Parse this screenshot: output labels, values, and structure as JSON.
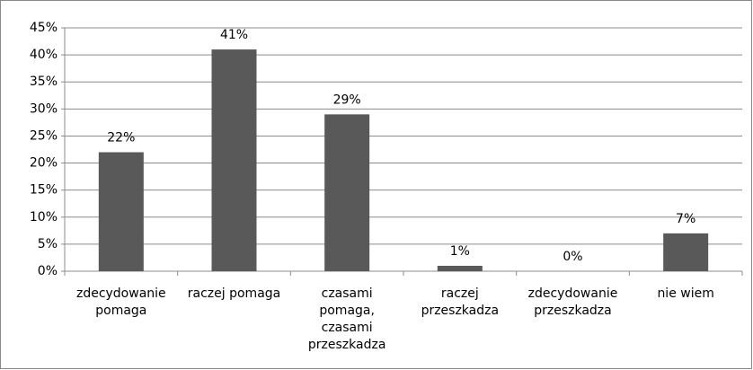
{
  "chart_data": {
    "type": "bar",
    "categories": [
      "zdecydowanie pomaga",
      "raczej pomaga",
      "czasami pomaga, czasami przeszkadza",
      "raczej przeszkadza",
      "zdecydowanie przeszkadza",
      "nie wiem"
    ],
    "values": [
      22,
      41,
      29,
      1,
      0,
      7
    ],
    "value_labels": [
      "22%",
      "41%",
      "29%",
      "1%",
      "0%",
      "7%"
    ],
    "color": "#595959",
    "ylim": [
      0,
      45
    ],
    "yticks": [
      {
        "value": 0,
        "label": "0%"
      },
      {
        "value": 5,
        "label": "5%"
      },
      {
        "value": 10,
        "label": "10%"
      },
      {
        "value": 15,
        "label": "15%"
      },
      {
        "value": 20,
        "label": "20%"
      },
      {
        "value": 25,
        "label": "25%"
      },
      {
        "value": 30,
        "label": "30%"
      },
      {
        "value": 35,
        "label": "35%"
      },
      {
        "value": 40,
        "label": "40%"
      },
      {
        "value": 45,
        "label": "45%"
      }
    ],
    "grid": true
  }
}
